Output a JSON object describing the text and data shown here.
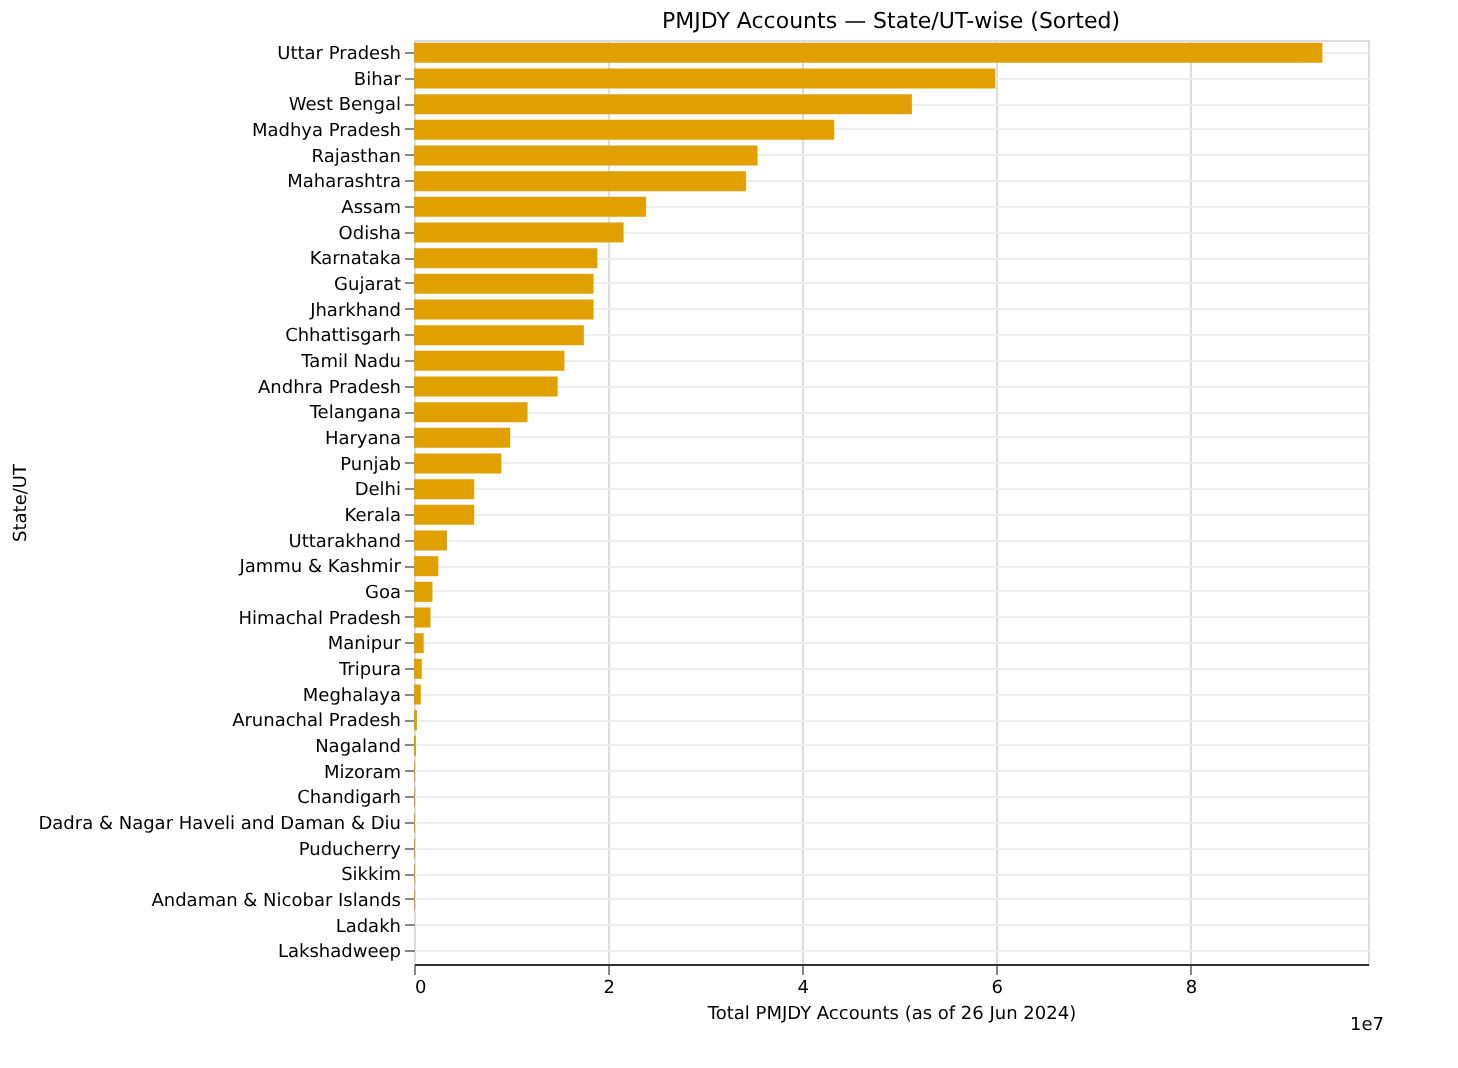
{
  "chart_data": {
    "type": "bar",
    "orientation": "horizontal",
    "title": "PMJDY Accounts — State/UT-wise (Sorted)",
    "xlabel": "Total PMJDY Accounts (as of 26 Jun 2024)",
    "ylabel": "State/UT",
    "categories": [
      "Uttar Pradesh",
      "Bihar",
      "West Bengal",
      "Madhya Pradesh",
      "Rajasthan",
      "Maharashtra",
      "Assam",
      "Odisha",
      "Karnataka",
      "Gujarat",
      "Jharkhand",
      "Chhattisgarh",
      "Tamil Nadu",
      "Andhra Pradesh",
      "Telangana",
      "Haryana",
      "Punjab",
      "Delhi",
      "Kerala",
      "Uttarakhand",
      "Jammu & Kashmir",
      "Goa",
      "Himachal Pradesh",
      "Manipur",
      "Tripura",
      "Meghalaya",
      "Arunachal Pradesh",
      "Nagaland",
      "Mizoram",
      "Chandigarh",
      "Dadra & Nagar Haveli and Daman & Diu",
      "Puducherry",
      "Sikkim",
      "Andaman & Nicobar Islands",
      "Ladakh",
      "Lakshadweep"
    ],
    "values": [
      9.36,
      5.99,
      5.13,
      4.33,
      3.54,
      3.42,
      2.39,
      2.16,
      1.89,
      1.85,
      1.85,
      1.75,
      1.55,
      1.48,
      1.17,
      0.99,
      0.9,
      0.62,
      0.62,
      0.34,
      0.25,
      0.19,
      0.17,
      0.1,
      0.08,
      0.07,
      0.03,
      0.02,
      0.01,
      0.01,
      0.01,
      0.01,
      0.01,
      0.01,
      0,
      0
    ],
    "color": "#e0a000",
    "xlim": [
      0,
      9.83
    ],
    "xticks": [
      0,
      2,
      4,
      6,
      8
    ],
    "grid": true,
    "annotations": [
      "1e7"
    ]
  }
}
